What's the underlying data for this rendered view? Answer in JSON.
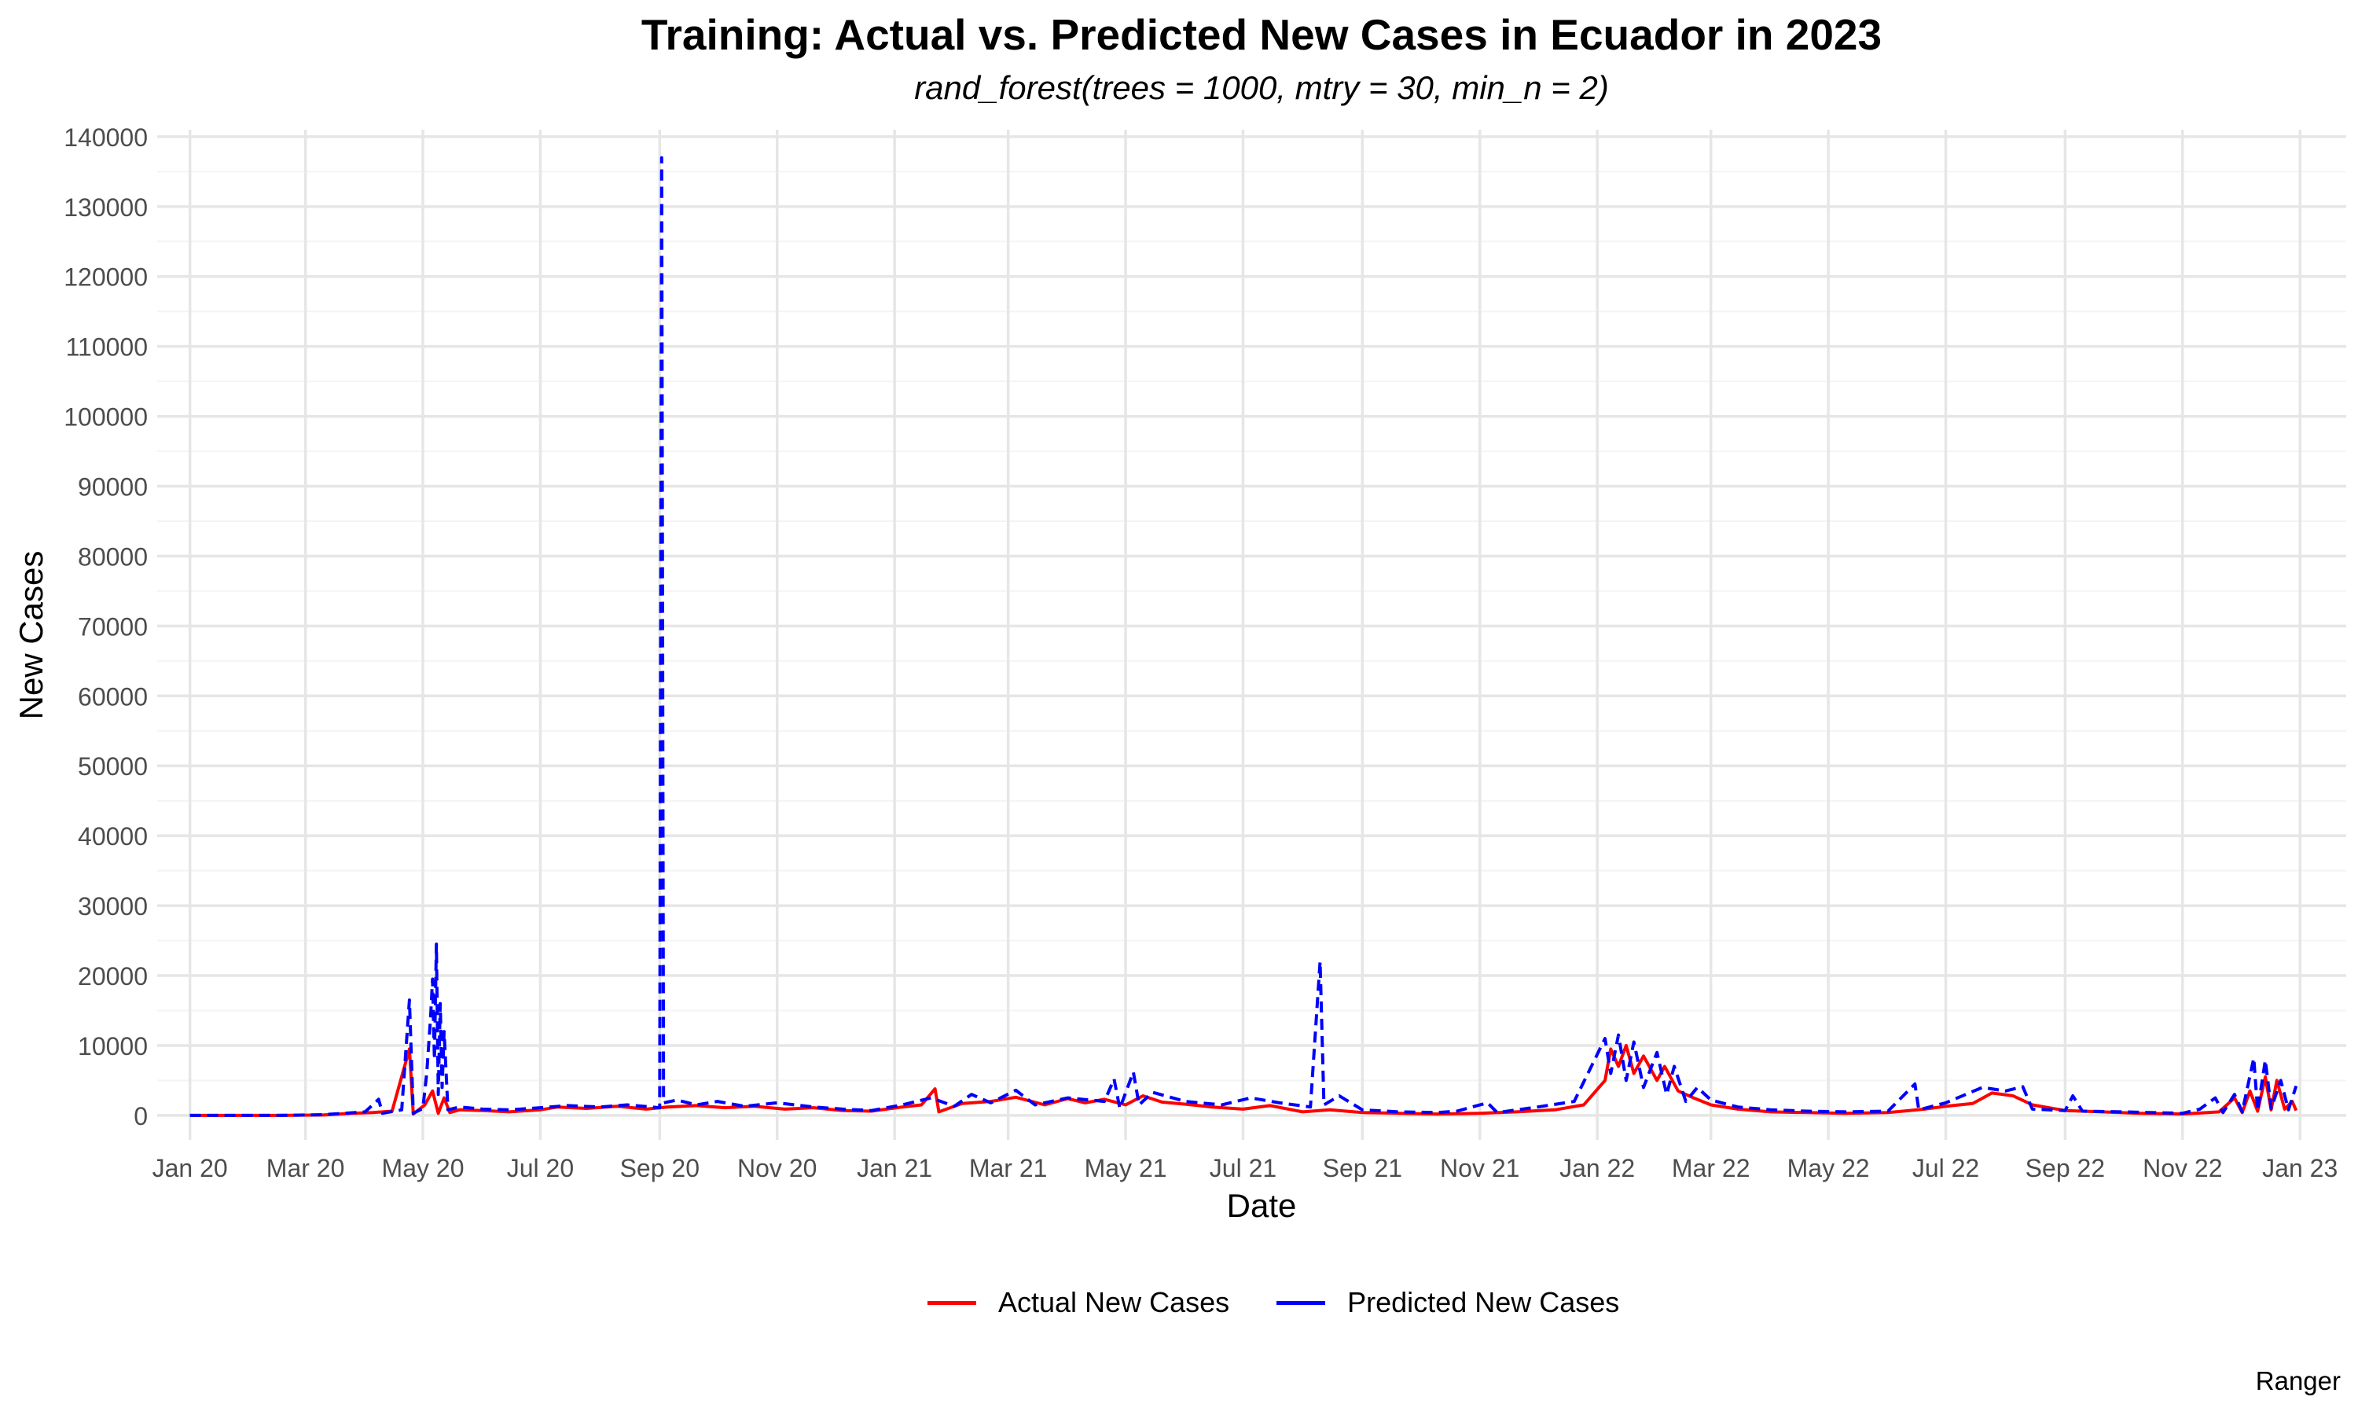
{
  "chart_data": {
    "type": "line",
    "title": "Training: Actual vs. Predicted New Cases in Ecuador in 2023",
    "subtitle": "rand_forest(trees = 1000, mtry = 30, min_n = 2)",
    "xlabel": "Date",
    "ylabel": "New Cases",
    "caption": "Ranger",
    "ylim": [
      -3500,
      141000
    ],
    "xlim": [
      "2019-12-15",
      "2023-01-25"
    ],
    "y_ticks": [
      0,
      10000,
      20000,
      30000,
      40000,
      50000,
      60000,
      70000,
      80000,
      90000,
      100000,
      110000,
      120000,
      130000,
      140000
    ],
    "x_ticks": [
      {
        "label": "Jan 20",
        "date": "2020-01-01"
      },
      {
        "label": "Mar 20",
        "date": "2020-03-01"
      },
      {
        "label": "May 20",
        "date": "2020-05-01"
      },
      {
        "label": "Jul 20",
        "date": "2020-07-01"
      },
      {
        "label": "Sep 20",
        "date": "2020-09-01"
      },
      {
        "label": "Nov 20",
        "date": "2020-11-01"
      },
      {
        "label": "Jan 21",
        "date": "2021-01-01"
      },
      {
        "label": "Mar 21",
        "date": "2021-03-01"
      },
      {
        "label": "May 21",
        "date": "2021-05-01"
      },
      {
        "label": "Jul 21",
        "date": "2021-07-01"
      },
      {
        "label": "Sep 21",
        "date": "2021-09-01"
      },
      {
        "label": "Nov 21",
        "date": "2021-11-01"
      },
      {
        "label": "Jan 22",
        "date": "2022-01-01"
      },
      {
        "label": "Mar 22",
        "date": "2022-03-01"
      },
      {
        "label": "May 22",
        "date": "2022-05-01"
      },
      {
        "label": "Jul 22",
        "date": "2022-07-01"
      },
      {
        "label": "Sep 22",
        "date": "2022-09-01"
      },
      {
        "label": "Nov 22",
        "date": "2022-11-01"
      },
      {
        "label": "Jan 23",
        "date": "2023-01-01"
      }
    ],
    "grid": true,
    "legend_position": "bottom",
    "series": [
      {
        "name": "Actual New Cases",
        "color": "#ff0000",
        "dash": "solid",
        "points": [
          [
            "2020-01-01",
            0
          ],
          [
            "2020-02-15",
            0
          ],
          [
            "2020-03-10",
            50
          ],
          [
            "2020-03-25",
            300
          ],
          [
            "2020-04-05",
            400
          ],
          [
            "2020-04-15",
            600
          ],
          [
            "2020-04-24",
            9500
          ],
          [
            "2020-04-26",
            200
          ],
          [
            "2020-05-02",
            1500
          ],
          [
            "2020-05-06",
            3500
          ],
          [
            "2020-05-09",
            300
          ],
          [
            "2020-05-12",
            2500
          ],
          [
            "2020-05-15",
            400
          ],
          [
            "2020-05-20",
            800
          ],
          [
            "2020-06-01",
            700
          ],
          [
            "2020-06-15",
            500
          ],
          [
            "2020-07-01",
            800
          ],
          [
            "2020-07-10",
            1200
          ],
          [
            "2020-07-25",
            1000
          ],
          [
            "2020-08-10",
            1300
          ],
          [
            "2020-08-25",
            900
          ],
          [
            "2020-09-05",
            1200
          ],
          [
            "2020-09-20",
            1400
          ],
          [
            "2020-10-05",
            1100
          ],
          [
            "2020-10-20",
            1300
          ],
          [
            "2020-11-05",
            900
          ],
          [
            "2020-11-20",
            1100
          ],
          [
            "2020-12-05",
            700
          ],
          [
            "2020-12-20",
            600
          ],
          [
            "2021-01-05",
            1200
          ],
          [
            "2021-01-15",
            1500
          ],
          [
            "2021-01-22",
            3800
          ],
          [
            "2021-01-24",
            500
          ],
          [
            "2021-02-05",
            1700
          ],
          [
            "2021-02-20",
            2000
          ],
          [
            "2021-03-05",
            2600
          ],
          [
            "2021-03-20",
            1500
          ],
          [
            "2021-04-01",
            2400
          ],
          [
            "2021-04-10",
            1800
          ],
          [
            "2021-04-20",
            2300
          ],
          [
            "2021-05-01",
            1500
          ],
          [
            "2021-05-10",
            2800
          ],
          [
            "2021-05-20",
            1900
          ],
          [
            "2021-06-01",
            1600
          ],
          [
            "2021-06-15",
            1200
          ],
          [
            "2021-07-01",
            900
          ],
          [
            "2021-07-15",
            1400
          ],
          [
            "2021-08-01",
            500
          ],
          [
            "2021-08-15",
            800
          ],
          [
            "2021-09-01",
            400
          ],
          [
            "2021-09-20",
            300
          ],
          [
            "2021-10-10",
            200
          ],
          [
            "2021-11-01",
            300
          ],
          [
            "2021-11-20",
            500
          ],
          [
            "2021-12-10",
            800
          ],
          [
            "2021-12-25",
            1500
          ],
          [
            "2022-01-05",
            5000
          ],
          [
            "2022-01-08",
            9500
          ],
          [
            "2022-01-12",
            7000
          ],
          [
            "2022-01-16",
            10000
          ],
          [
            "2022-01-20",
            6000
          ],
          [
            "2022-01-25",
            8500
          ],
          [
            "2022-02-01",
            5000
          ],
          [
            "2022-02-05",
            7000
          ],
          [
            "2022-02-12",
            3500
          ],
          [
            "2022-02-20",
            2500
          ],
          [
            "2022-03-01",
            1500
          ],
          [
            "2022-03-15",
            900
          ],
          [
            "2022-04-01",
            500
          ],
          [
            "2022-04-20",
            400
          ],
          [
            "2022-05-10",
            300
          ],
          [
            "2022-06-01",
            400
          ],
          [
            "2022-06-20",
            900
          ],
          [
            "2022-07-01",
            1300
          ],
          [
            "2022-07-15",
            1700
          ],
          [
            "2022-07-25",
            3200
          ],
          [
            "2022-08-05",
            2800
          ],
          [
            "2022-08-15",
            1500
          ],
          [
            "2022-09-01",
            700
          ],
          [
            "2022-09-20",
            500
          ],
          [
            "2022-10-10",
            300
          ],
          [
            "2022-11-01",
            200
          ],
          [
            "2022-11-20",
            500
          ],
          [
            "2022-11-28",
            2500
          ],
          [
            "2022-12-02",
            400
          ],
          [
            "2022-12-06",
            3500
          ],
          [
            "2022-12-10",
            600
          ],
          [
            "2022-12-14",
            5500
          ],
          [
            "2022-12-17",
            800
          ],
          [
            "2022-12-20",
            5000
          ],
          [
            "2022-12-24",
            900
          ],
          [
            "2022-12-28",
            2000
          ],
          [
            "2022-12-30",
            700
          ]
        ]
      },
      {
        "name": "Predicted New Cases",
        "color": "#0000ff",
        "dash": "dashed",
        "points": [
          [
            "2020-01-01",
            0
          ],
          [
            "2020-02-15",
            0
          ],
          [
            "2020-03-10",
            100
          ],
          [
            "2020-04-01",
            500
          ],
          [
            "2020-04-08",
            2300
          ],
          [
            "2020-04-10",
            300
          ],
          [
            "2020-04-20",
            800
          ],
          [
            "2020-04-24",
            16500
          ],
          [
            "2020-04-26",
            300
          ],
          [
            "2020-05-01",
            1000
          ],
          [
            "2020-05-03",
            6000
          ],
          [
            "2020-05-05",
            14000
          ],
          [
            "2020-05-06",
            19500
          ],
          [
            "2020-05-07",
            8000
          ],
          [
            "2020-05-08",
            24500
          ],
          [
            "2020-05-09",
            3000
          ],
          [
            "2020-05-10",
            16000
          ],
          [
            "2020-05-11",
            4000
          ],
          [
            "2020-05-12",
            12000
          ],
          [
            "2020-05-14",
            800
          ],
          [
            "2020-05-20",
            1200
          ],
          [
            "2020-06-01",
            900
          ],
          [
            "2020-06-15",
            800
          ],
          [
            "2020-07-01",
            1100
          ],
          [
            "2020-07-15",
            1400
          ],
          [
            "2020-08-01",
            1200
          ],
          [
            "2020-08-15",
            1500
          ],
          [
            "2020-09-01",
            1100
          ],
          [
            "2020-09-02",
            137000
          ],
          [
            "2020-09-03",
            1800
          ],
          [
            "2020-09-10",
            2200
          ],
          [
            "2020-09-20",
            1500
          ],
          [
            "2020-10-01",
            2000
          ],
          [
            "2020-10-15",
            1300
          ],
          [
            "2020-11-01",
            1800
          ],
          [
            "2020-11-20",
            1200
          ],
          [
            "2020-12-05",
            900
          ],
          [
            "2020-12-20",
            700
          ],
          [
            "2021-01-05",
            1500
          ],
          [
            "2021-01-20",
            2500
          ],
          [
            "2021-02-01",
            1300
          ],
          [
            "2021-02-10",
            3000
          ],
          [
            "2021-02-20",
            1800
          ],
          [
            "2021-03-05",
            3600
          ],
          [
            "2021-03-15",
            1500
          ],
          [
            "2021-04-01",
            2500
          ],
          [
            "2021-04-20",
            2000
          ],
          [
            "2021-04-25",
            5200
          ],
          [
            "2021-04-28",
            1000
          ],
          [
            "2021-05-05",
            6200
          ],
          [
            "2021-05-08",
            1500
          ],
          [
            "2021-05-15",
            3300
          ],
          [
            "2021-06-01",
            2000
          ],
          [
            "2021-06-20",
            1500
          ],
          [
            "2021-07-05",
            2500
          ],
          [
            "2021-07-20",
            1800
          ],
          [
            "2021-08-05",
            1200
          ],
          [
            "2021-08-10",
            22000
          ],
          [
            "2021-08-12",
            1500
          ],
          [
            "2021-08-20",
            2800
          ],
          [
            "2021-09-01",
            800
          ],
          [
            "2021-09-20",
            500
          ],
          [
            "2021-10-10",
            400
          ],
          [
            "2021-10-20",
            600
          ],
          [
            "2021-11-05",
            1800
          ],
          [
            "2021-11-10",
            400
          ],
          [
            "2021-12-01",
            1200
          ],
          [
            "2021-12-20",
            2000
          ],
          [
            "2022-01-05",
            11000
          ],
          [
            "2022-01-08",
            6000
          ],
          [
            "2022-01-12",
            11500
          ],
          [
            "2022-01-16",
            5000
          ],
          [
            "2022-01-20",
            10500
          ],
          [
            "2022-01-25",
            4000
          ],
          [
            "2022-02-01",
            9000
          ],
          [
            "2022-02-06",
            3000
          ],
          [
            "2022-02-10",
            7000
          ],
          [
            "2022-02-16",
            2000
          ],
          [
            "2022-02-22",
            4000
          ],
          [
            "2022-03-01",
            2200
          ],
          [
            "2022-03-15",
            1200
          ],
          [
            "2022-04-01",
            800
          ],
          [
            "2022-04-20",
            600
          ],
          [
            "2022-05-10",
            500
          ],
          [
            "2022-06-01",
            600
          ],
          [
            "2022-06-15",
            4500
          ],
          [
            "2022-06-17",
            800
          ],
          [
            "2022-07-01",
            1800
          ],
          [
            "2022-07-20",
            4000
          ],
          [
            "2022-08-01",
            3500
          ],
          [
            "2022-08-10",
            4100
          ],
          [
            "2022-08-15",
            900
          ],
          [
            "2022-09-01",
            700
          ],
          [
            "2022-09-05",
            2800
          ],
          [
            "2022-09-10",
            600
          ],
          [
            "2022-10-01",
            500
          ],
          [
            "2022-11-01",
            300
          ],
          [
            "2022-11-10",
            900
          ],
          [
            "2022-11-18",
            2500
          ],
          [
            "2022-11-22",
            400
          ],
          [
            "2022-11-28",
            3000
          ],
          [
            "2022-12-02",
            500
          ],
          [
            "2022-12-08",
            8200
          ],
          [
            "2022-12-10",
            700
          ],
          [
            "2022-12-14",
            7900
          ],
          [
            "2022-12-17",
            1000
          ],
          [
            "2022-12-22",
            5000
          ],
          [
            "2022-12-26",
            800
          ],
          [
            "2022-12-30",
            4200
          ]
        ]
      }
    ]
  }
}
